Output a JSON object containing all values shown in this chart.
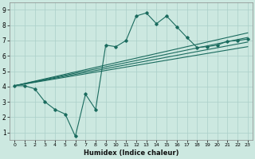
{
  "xlabel": "Humidex (Indice chaleur)",
  "xlim": [
    -0.5,
    23.5
  ],
  "ylim": [
    0.5,
    9.5
  ],
  "xticks": [
    0,
    1,
    2,
    3,
    4,
    5,
    6,
    7,
    8,
    9,
    10,
    11,
    12,
    13,
    14,
    15,
    16,
    17,
    18,
    19,
    20,
    21,
    22,
    23
  ],
  "yticks": [
    1,
    2,
    3,
    4,
    5,
    6,
    7,
    8,
    9
  ],
  "bg_color": "#cce8e0",
  "line_color": "#1a6b5e",
  "grid_color": "#aacfc8",
  "main_x": [
    0,
    1,
    2,
    3,
    4,
    5,
    6,
    7,
    8,
    9,
    10,
    11,
    12,
    13,
    14,
    15,
    16,
    17,
    18,
    19,
    20,
    21,
    22,
    23
  ],
  "main_y": [
    4.05,
    4.05,
    3.85,
    3.0,
    2.5,
    2.2,
    0.75,
    3.5,
    2.5,
    6.7,
    6.6,
    7.0,
    8.6,
    8.8,
    8.1,
    8.6,
    7.9,
    7.2,
    6.55,
    6.6,
    6.7,
    6.95,
    7.0,
    7.1
  ],
  "trend_lines": [
    [
      4.05,
      7.5
    ],
    [
      4.05,
      7.2
    ],
    [
      4.05,
      6.9
    ],
    [
      4.05,
      6.6
    ]
  ]
}
